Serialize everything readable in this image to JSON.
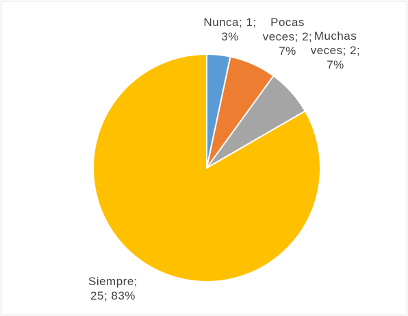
{
  "chart_data": {
    "type": "pie",
    "values": [
      1,
      2,
      2,
      25
    ],
    "value_labels": [
      "Nunca; 1; 3%",
      "Pocas veces; 2; 7%",
      "Muchas veces; 2; 7%",
      "Siempre; 25; 83%"
    ],
    "colors": [
      "#5b9bd5",
      "#ed7d31",
      "#a5a5a5",
      "#ffc000"
    ]
  }
}
